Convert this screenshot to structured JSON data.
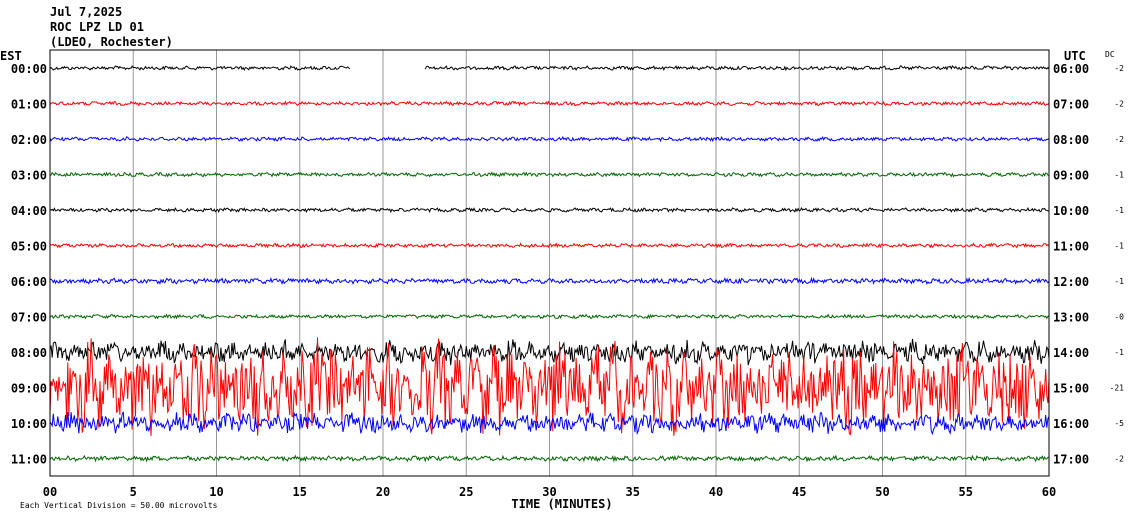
{
  "chart_data": {
    "type": "line",
    "header": [
      "Jul 7,2025",
      "ROC LPZ LD 01",
      "(LDEO, Rochester)"
    ],
    "left_timezone": "EST",
    "right_timezone": "UTC",
    "dc_label": "DC",
    "xlabel": "TIME (MINUTES)",
    "xlim": [
      0,
      60
    ],
    "x_ticks": [
      "00",
      "5",
      "10",
      "15",
      "20",
      "25",
      "30",
      "35",
      "40",
      "45",
      "50",
      "55",
      "60"
    ],
    "footnote": "Each Vertical Division = 50.00 microvolts",
    "rows": [
      {
        "left": "00:00",
        "right": "06:00",
        "dc": "-2",
        "color": "#000000",
        "amplitude": 1.5,
        "gap": [
          18.0,
          22.5
        ]
      },
      {
        "left": "01:00",
        "right": "07:00",
        "dc": "-2",
        "color": "#ff0000",
        "amplitude": 1.5
      },
      {
        "left": "02:00",
        "right": "08:00",
        "dc": "-2",
        "color": "#0000ff",
        "amplitude": 1.5
      },
      {
        "left": "03:00",
        "right": "09:00",
        "dc": "-1",
        "color": "#006600",
        "amplitude": 1.5
      },
      {
        "left": "04:00",
        "right": "10:00",
        "dc": "-1",
        "color": "#000000",
        "amplitude": 1.5
      },
      {
        "left": "05:00",
        "right": "11:00",
        "dc": "-1",
        "color": "#ff0000",
        "amplitude": 1.5
      },
      {
        "left": "06:00",
        "right": "12:00",
        "dc": "-1",
        "color": "#0000ff",
        "amplitude": 2.0
      },
      {
        "left": "07:00",
        "right": "13:00",
        "dc": "-0",
        "color": "#006600",
        "amplitude": 1.5
      },
      {
        "left": "08:00",
        "right": "14:00",
        "dc": "-1",
        "color": "#000000",
        "amplitude": 10.0
      },
      {
        "left": "09:00",
        "right": "15:00",
        "dc": "-21",
        "color": "#ff0000",
        "amplitude": 38.0
      },
      {
        "left": "10:00",
        "right": "16:00",
        "dc": "-5",
        "color": "#0000ff",
        "amplitude": 9.0
      },
      {
        "left": "11:00",
        "right": "17:00",
        "dc": "-2",
        "color": "#006600",
        "amplitude": 2.0
      }
    ]
  }
}
